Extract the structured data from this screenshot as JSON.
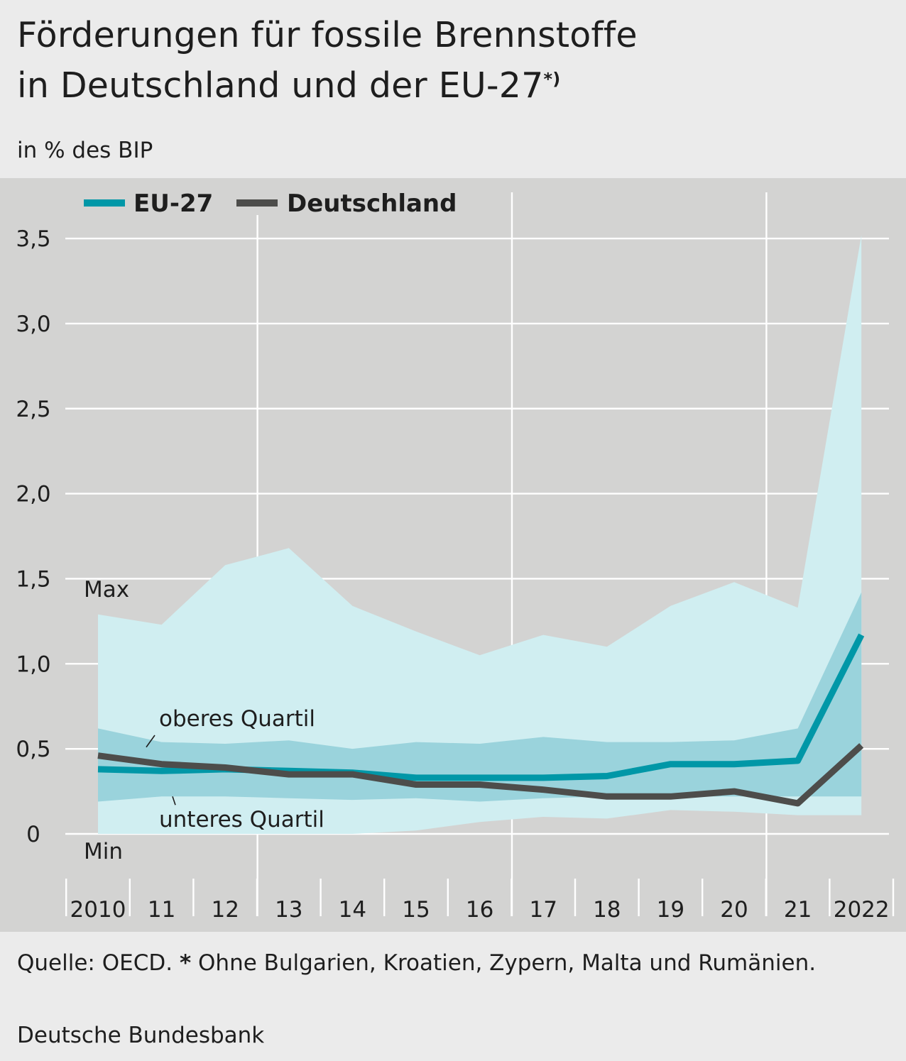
{
  "header": {
    "title_line1": "Förderungen für fossile Brennstoffe",
    "title_line2": "in Deutschland und der EU-27",
    "title_footnote_mark": "*)",
    "subtitle": "in % des BIP"
  },
  "footer": {
    "source_prefix": "Quelle: OECD.",
    "source_star": "*",
    "source_note": "Ohne Bulgarien, Kroatien, Zypern, Malta und Rumänien.",
    "publisher": "Deutsche Bundesbank"
  },
  "chart_data": {
    "type": "area",
    "categories": [
      "2010",
      "11",
      "12",
      "13",
      "14",
      "15",
      "16",
      "17",
      "18",
      "19",
      "20",
      "21",
      "2022"
    ],
    "ylim": [
      0,
      3.5
    ],
    "yticks": [
      0,
      0.5,
      1.0,
      1.5,
      2.0,
      2.5,
      3.0,
      3.5
    ],
    "ytick_labels": [
      "0",
      "0,5",
      "1,0",
      "1,5",
      "2,0",
      "2,5",
      "3,0",
      "3,5"
    ],
    "legend_position": "top-left",
    "series": [
      {
        "name": "EU-27",
        "color": "#0097a7",
        "values": [
          0.38,
          0.37,
          0.38,
          0.37,
          0.36,
          0.33,
          0.33,
          0.33,
          0.34,
          0.41,
          0.41,
          0.43,
          1.17
        ]
      },
      {
        "name": "Deutschland",
        "color": "#4d4d4b",
        "values": [
          0.46,
          0.41,
          0.39,
          0.35,
          0.35,
          0.29,
          0.29,
          0.26,
          0.22,
          0.22,
          0.25,
          0.18,
          0.52
        ]
      }
    ],
    "bands": [
      {
        "label_upper": "Max",
        "label_lower": "Min",
        "color": "#d0eef1",
        "upper": [
          1.29,
          1.23,
          1.58,
          1.68,
          1.34,
          1.19,
          1.05,
          1.17,
          1.1,
          1.34,
          1.48,
          1.33,
          3.52
        ],
        "lower": [
          0.0,
          0.0,
          0.0,
          0.0,
          0.0,
          0.02,
          0.07,
          0.1,
          0.09,
          0.14,
          0.13,
          0.11,
          0.11
        ]
      },
      {
        "label_upper": "oberes Quartil",
        "label_lower": "unteres Quartil",
        "color": "#9ad3dc",
        "upper": [
          0.62,
          0.54,
          0.53,
          0.55,
          0.5,
          0.54,
          0.53,
          0.57,
          0.54,
          0.54,
          0.55,
          0.62,
          1.42
        ],
        "lower": [
          0.19,
          0.22,
          0.22,
          0.21,
          0.2,
          0.21,
          0.19,
          0.21,
          0.22,
          0.22,
          0.22,
          0.22,
          0.22
        ]
      }
    ]
  }
}
